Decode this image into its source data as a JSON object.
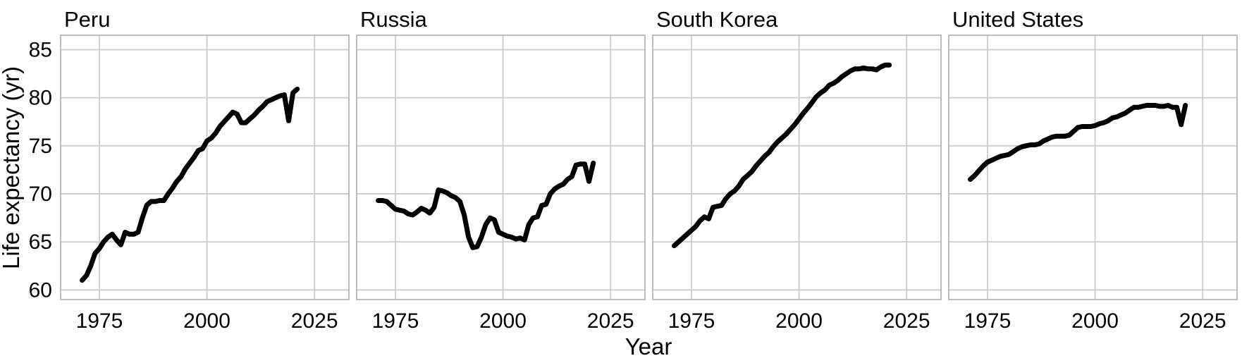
{
  "chart_data": {
    "type": "line",
    "xlabel": "Year",
    "ylabel": "Life expectancy (yr)",
    "xlim": [
      1966,
      2033
    ],
    "ylim": [
      59,
      86.5
    ],
    "x_ticks": [
      1975,
      2000,
      2025
    ],
    "y_ticks": [
      60,
      65,
      70,
      75,
      80,
      85
    ],
    "grid": true,
    "legend": "none",
    "line_color": "#000000",
    "grid_color": "#cfcfcf",
    "panels": [
      {
        "title": "Peru",
        "x": [
          1971,
          1972,
          1973,
          1974,
          1975,
          1976,
          1977,
          1978,
          1979,
          1980,
          1981,
          1982,
          1983,
          1984,
          1985,
          1986,
          1987,
          1988,
          1989,
          1990,
          1991,
          1992,
          1993,
          1994,
          1995,
          1996,
          1997,
          1998,
          1999,
          2000,
          2001,
          2002,
          2003,
          2004,
          2005,
          2006,
          2007,
          2008,
          2009,
          2010,
          2011,
          2012,
          2013,
          2014,
          2015,
          2016,
          2017,
          2018,
          2019,
          2020,
          2021
        ],
        "y": [
          61.0,
          61.5,
          62.5,
          63.8,
          64.3,
          65.0,
          65.5,
          65.8,
          65.2,
          64.7,
          66.0,
          65.8,
          65.8,
          66.0,
          67.5,
          68.8,
          69.2,
          69.2,
          69.3,
          69.3,
          70.0,
          70.6,
          71.3,
          71.8,
          72.6,
          73.2,
          73.8,
          74.5,
          74.7,
          75.5,
          75.8,
          76.3,
          77.0,
          77.5,
          78.0,
          78.5,
          78.3,
          77.4,
          77.4,
          77.8,
          78.2,
          78.7,
          79.1,
          79.6,
          79.8,
          80.0,
          80.2,
          80.3,
          77.6,
          80.5,
          80.9
        ]
      },
      {
        "title": "Russia",
        "x": [
          1971,
          1972,
          1973,
          1974,
          1975,
          1976,
          1977,
          1978,
          1979,
          1980,
          1981,
          1982,
          1983,
          1984,
          1985,
          1986,
          1987,
          1988,
          1989,
          1990,
          1991,
          1992,
          1993,
          1994,
          1995,
          1996,
          1997,
          1998,
          1999,
          2000,
          2001,
          2002,
          2003,
          2004,
          2005,
          2006,
          2007,
          2008,
          2009,
          2010,
          2011,
          2012,
          2013,
          2014,
          2015,
          2016,
          2017,
          2018,
          2019,
          2020,
          2021
        ],
        "y": [
          69.3,
          69.3,
          69.2,
          68.8,
          68.4,
          68.3,
          68.2,
          67.9,
          67.8,
          68.1,
          68.5,
          68.3,
          68.0,
          68.6,
          70.4,
          70.3,
          70.1,
          69.8,
          69.6,
          69.2,
          67.8,
          65.5,
          64.4,
          64.5,
          65.5,
          66.8,
          67.5,
          67.3,
          66.0,
          65.8,
          65.6,
          65.5,
          65.3,
          65.4,
          65.2,
          66.8,
          67.5,
          67.6,
          68.8,
          68.9,
          70.0,
          70.5,
          70.8,
          71.0,
          71.5,
          71.8,
          73.0,
          73.1,
          73.1,
          71.3,
          73.2
        ]
      },
      {
        "title": "South Korea",
        "x": [
          1971,
          1972,
          1973,
          1974,
          1975,
          1976,
          1977,
          1978,
          1979,
          1980,
          1981,
          1982,
          1983,
          1984,
          1985,
          1986,
          1987,
          1988,
          1989,
          1990,
          1991,
          1992,
          1993,
          1994,
          1995,
          1996,
          1997,
          1998,
          1999,
          2000,
          2001,
          2002,
          2003,
          2004,
          2005,
          2006,
          2007,
          2008,
          2009,
          2010,
          2011,
          2012,
          2013,
          2014,
          2015,
          2016,
          2017,
          2018,
          2019,
          2020,
          2021
        ],
        "y": [
          64.6,
          65.0,
          65.4,
          65.8,
          66.2,
          66.6,
          67.2,
          67.6,
          67.4,
          68.6,
          68.7,
          68.8,
          69.5,
          70.0,
          70.3,
          70.8,
          71.5,
          71.9,
          72.3,
          72.9,
          73.4,
          73.9,
          74.3,
          74.9,
          75.4,
          75.8,
          76.2,
          76.7,
          77.2,
          77.8,
          78.4,
          78.9,
          79.5,
          80.1,
          80.5,
          80.8,
          81.3,
          81.5,
          81.8,
          82.2,
          82.5,
          82.8,
          83.0,
          83.0,
          83.1,
          83.0,
          83.0,
          82.9,
          83.2,
          83.4,
          83.4
        ]
      },
      {
        "title": "United States",
        "x": [
          1971,
          1972,
          1973,
          1974,
          1975,
          1976,
          1977,
          1978,
          1979,
          1980,
          1981,
          1982,
          1983,
          1984,
          1985,
          1986,
          1987,
          1988,
          1989,
          1990,
          1991,
          1992,
          1993,
          1994,
          1995,
          1996,
          1997,
          1998,
          1999,
          2000,
          2001,
          2002,
          2003,
          2004,
          2005,
          2006,
          2007,
          2008,
          2009,
          2010,
          2011,
          2012,
          2013,
          2014,
          2015,
          2016,
          2017,
          2018,
          2019,
          2020,
          2021
        ],
        "y": [
          71.5,
          71.9,
          72.4,
          72.9,
          73.3,
          73.5,
          73.7,
          73.9,
          74.0,
          74.1,
          74.4,
          74.7,
          74.9,
          75.0,
          75.1,
          75.1,
          75.2,
          75.5,
          75.7,
          75.9,
          76.0,
          76.0,
          76.0,
          76.1,
          76.5,
          76.9,
          77.0,
          77.0,
          77.0,
          77.1,
          77.3,
          77.4,
          77.6,
          77.9,
          78.0,
          78.2,
          78.4,
          78.7,
          79.0,
          79.0,
          79.1,
          79.2,
          79.2,
          79.2,
          79.1,
          79.1,
          79.2,
          79.0,
          79.0,
          77.2,
          79.2
        ]
      }
    ]
  }
}
